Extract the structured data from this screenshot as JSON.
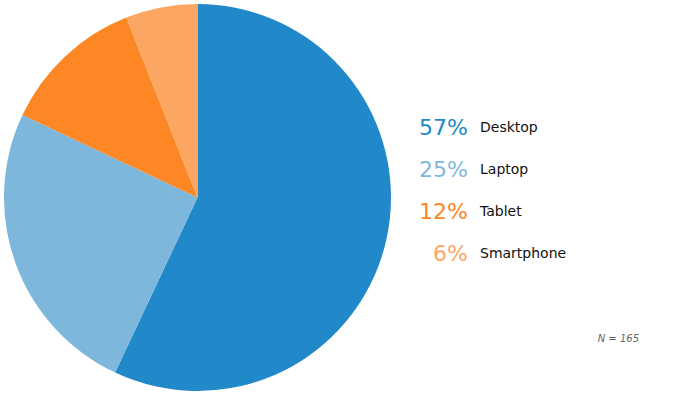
{
  "chart_data": {
    "type": "pie",
    "categories": [
      "Desktop",
      "Laptop",
      "Tablet",
      "Smartphone"
    ],
    "values": [
      57,
      25,
      12,
      6
    ],
    "value_labels": [
      "57%",
      "25%",
      "12%",
      "6%"
    ],
    "colors": [
      "#2188c9",
      "#7db8dc",
      "#fd8724",
      "#fca663"
    ],
    "legend": "right",
    "annotation": "N = 165"
  }
}
